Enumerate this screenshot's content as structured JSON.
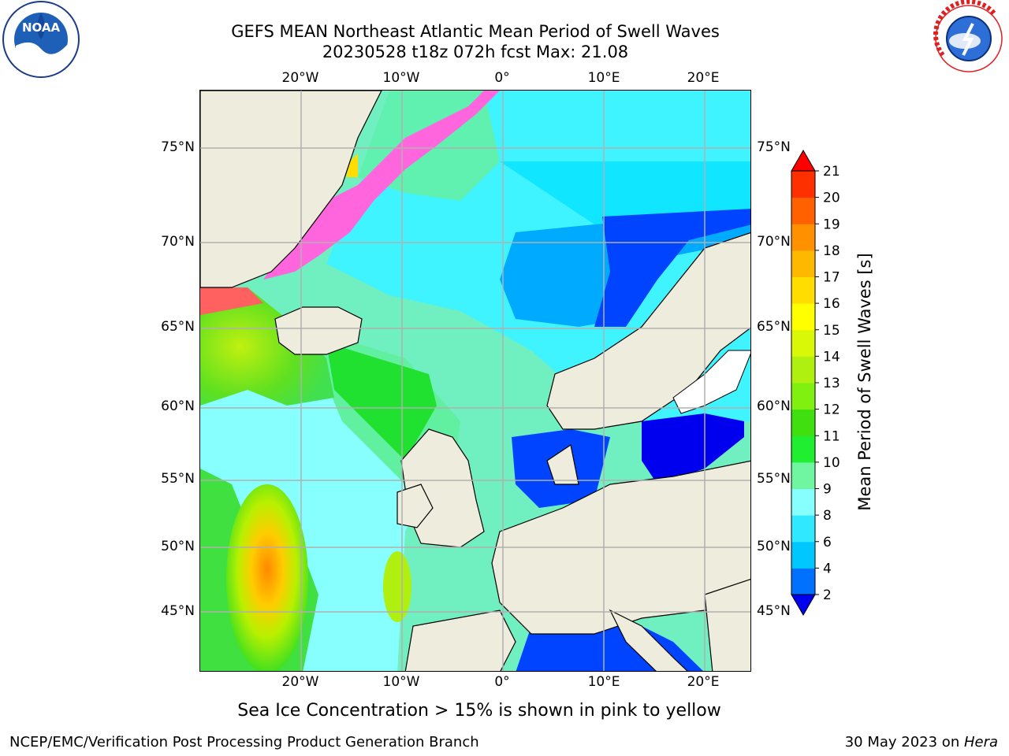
{
  "header": {
    "title_line1": "GEFS MEAN Northeast Atlantic Mean Period of Swell Waves",
    "title_line2": "20230528 t18z 072h fcst   Max: 21.08"
  },
  "logos": {
    "left": {
      "icon": "noaa-logo",
      "text": "NOAA"
    },
    "right": {
      "icon": "nws-logo",
      "text": "NATIONAL WEATHER SERVICE"
    }
  },
  "map": {
    "region": "Northeast Atlantic",
    "lon_labels": [
      "20°W",
      "10°W",
      "0°",
      "10°E",
      "20°E"
    ],
    "lat_labels": [
      "75°N",
      "70°N",
      "65°N",
      "60°N",
      "55°N",
      "50°N",
      "45°N"
    ],
    "colors": {
      "land": "#eeecdd",
      "ice_pink": "#ff66dd",
      "ice_yellow": "#ffdd00",
      "grid": "#b0b0b0"
    }
  },
  "colorbar": {
    "label": "Mean Period of Swell Waves [s]",
    "ticks": [
      "2",
      "4",
      "6",
      "8",
      "9",
      "10",
      "11",
      "12",
      "13",
      "14",
      "15",
      "16",
      "17",
      "18",
      "19",
      "20",
      "21"
    ],
    "colors": [
      "#0000ee",
      "#0070ff",
      "#00c8ff",
      "#30e8ff",
      "#88ffff",
      "#70f5a0",
      "#20ee30",
      "#40e010",
      "#80f010",
      "#b0f010",
      "#d8f808",
      "#ffff00",
      "#ffdd00",
      "#ffb800",
      "#ff9000",
      "#ff6000",
      "#ff3000",
      "#ff0000"
    ]
  },
  "footnote": "Sea Ice Concentration > 15% is shown in pink to yellow",
  "footer": {
    "left": "NCEP/EMC/Verification Post Processing Product Generation Branch",
    "right_prefix": "30 May 2023 on ",
    "right_host": "Hera"
  }
}
